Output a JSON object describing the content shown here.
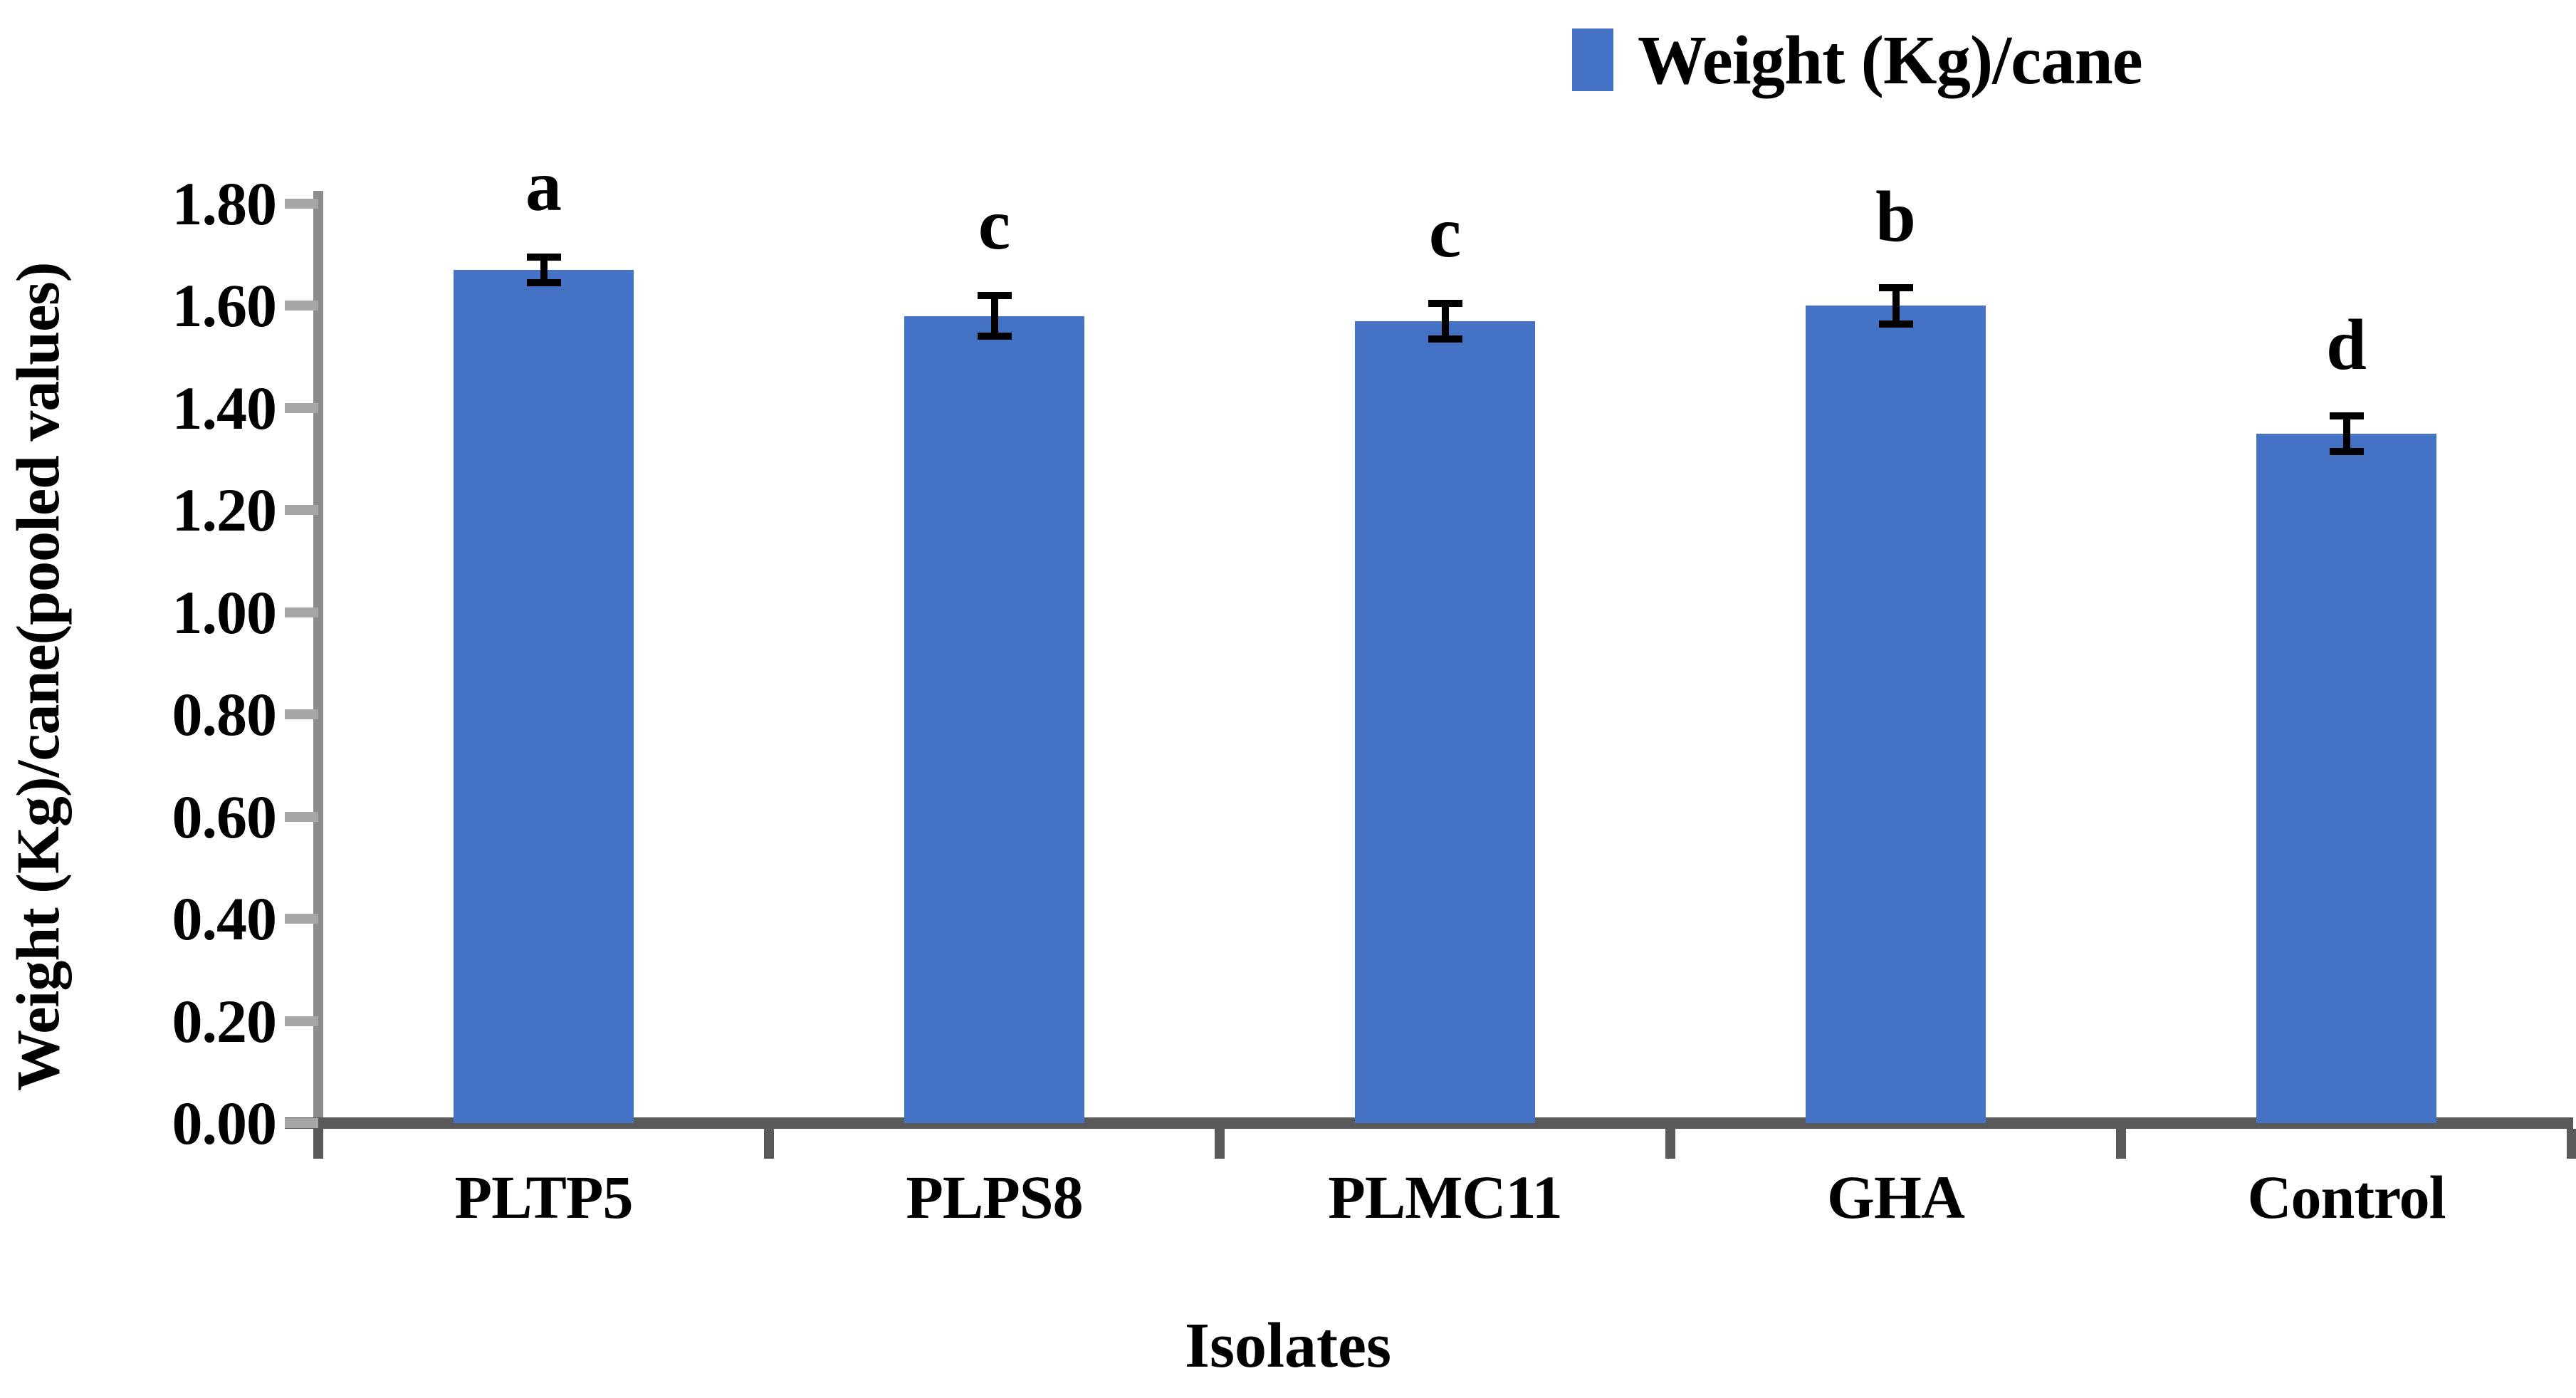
{
  "chart_data": {
    "type": "bar",
    "legend": {
      "label": "Weight (Kg)/cane",
      "position": "top-right"
    },
    "xlabel": "Isolates",
    "ylabel": "Weight (Kg)/cane(pooled values)",
    "categories": [
      "PLTP5",
      "PLPS8",
      "PLMC11",
      "GHA",
      "Control"
    ],
    "series": [
      {
        "name": "Weight (Kg)/cane",
        "values": [
          1.67,
          1.58,
          1.57,
          1.6,
          1.35
        ],
        "errors": [
          0.025,
          0.04,
          0.035,
          0.035,
          0.035
        ],
        "significance_letters": [
          "a",
          "c",
          "c",
          "b",
          "d"
        ]
      }
    ],
    "ylim": [
      0.0,
      1.8
    ],
    "ytick_step": 0.2,
    "yticks": [
      "1.80",
      "1.60",
      "1.40",
      "1.20",
      "1.00",
      "0.80",
      "0.60",
      "0.40",
      "0.20",
      "0.00"
    ],
    "grid": false,
    "colors": {
      "bar_fill": "#4472C4",
      "error_bar": "#000000",
      "y_axis_line": "#8C8C8C",
      "y_tick": "#A6A6A6",
      "x_axis_line": "#595959",
      "x_tick": "#595959",
      "text": "#000000",
      "background": "#FFFFFF"
    }
  }
}
